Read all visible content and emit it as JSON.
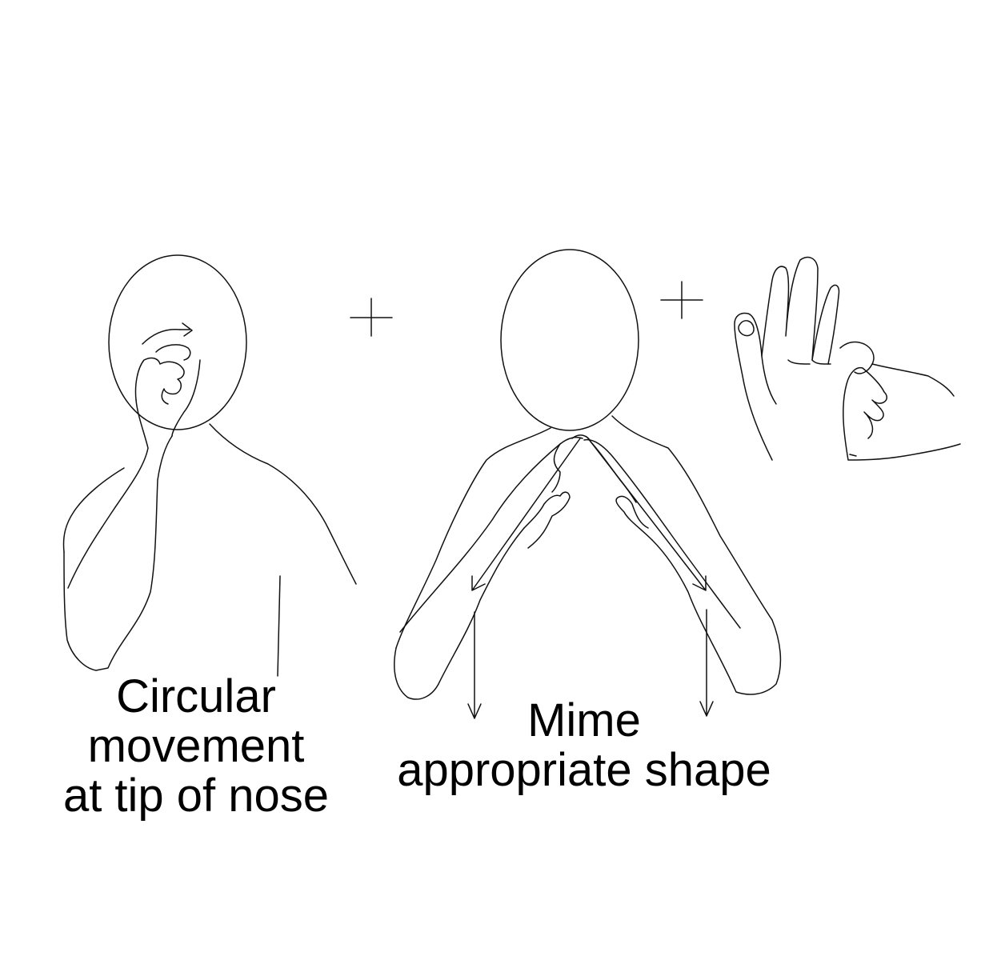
{
  "captions": {
    "sign_one": [
      "Circular",
      "movement",
      "at tip of nose"
    ],
    "sign_two": [
      "Mime",
      "appropriate shape"
    ]
  },
  "connectors": [
    "+",
    "+"
  ]
}
